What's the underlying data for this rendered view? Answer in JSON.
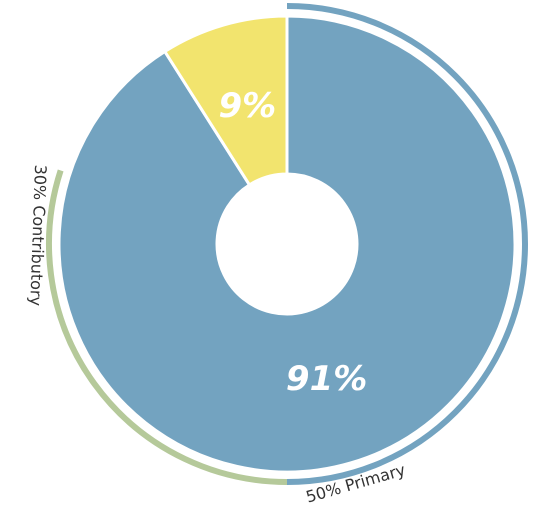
{
  "chart_data": {
    "type": "donut",
    "values": [
      91,
      9
    ],
    "value_labels": [
      "91%",
      "9%"
    ],
    "colors": [
      "#73a3c0",
      "#f2e46e"
    ],
    "rings": [
      {
        "label": "50% Primary",
        "value": 50,
        "color": "#73a3c0"
      },
      {
        "label": "30% Contributory",
        "value": 30,
        "color": "#b5c99a"
      }
    ]
  }
}
